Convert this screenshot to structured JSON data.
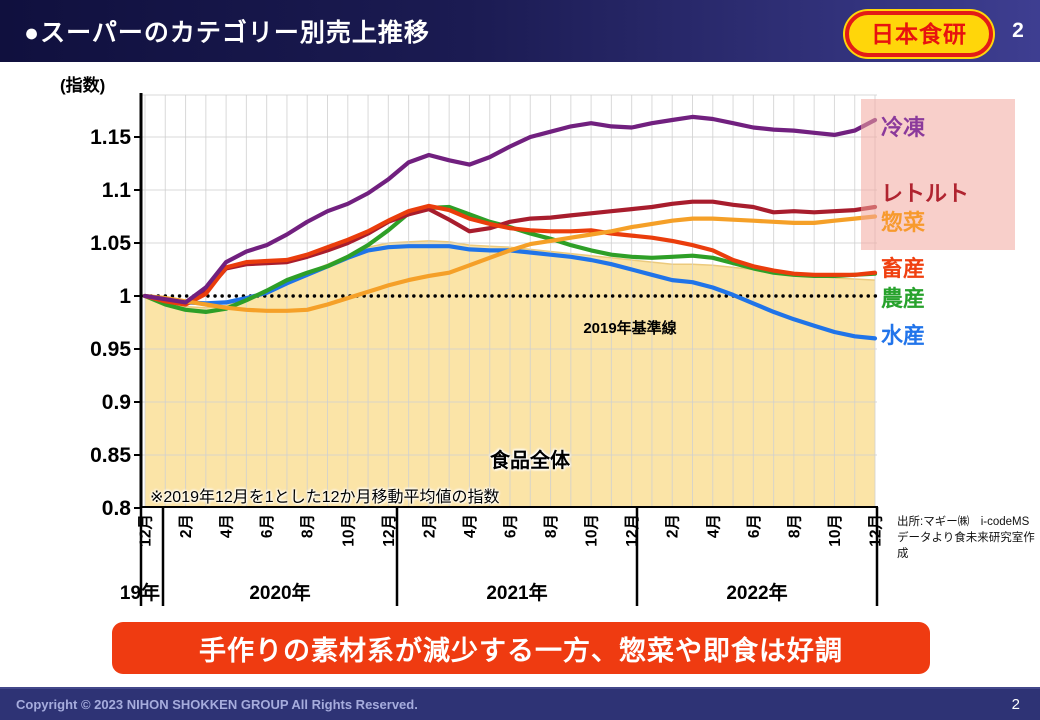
{
  "header": {
    "title": "●スーパーのカテゴリー別売上推移",
    "logo_text": "日本食研",
    "page_number": "2"
  },
  "chart_data": {
    "type": "line",
    "title": "スーパーのカテゴリー別売上推移",
    "y_axis_label": "(指数)",
    "note": "※2019年12月を1とした12か月移動平均値の指数",
    "baseline_label": "2019年基準線",
    "baseline_value": 1,
    "ylim": [
      0.8,
      1.19
    ],
    "grid": true,
    "legend_position": "right",
    "y_ticks": {
      "labels": [
        "1.15",
        "1.1",
        "1.05",
        "1",
        "0.95",
        "0.9",
        "0.85",
        "0.8"
      ],
      "values": [
        1.15,
        1.1,
        1.05,
        1,
        0.95,
        0.9,
        0.85,
        0.8
      ]
    },
    "month_ticks": {
      "months": [
        0,
        2,
        4,
        6,
        8,
        10,
        12,
        14,
        16,
        18,
        20,
        22,
        24,
        26,
        28,
        30,
        32,
        34,
        36
      ],
      "labels": [
        "12月",
        "2月",
        "4月",
        "6月",
        "8月",
        "10月",
        "12月",
        "2月",
        "4月",
        "6月",
        "8月",
        "10月",
        "12月",
        "2月",
        "4月",
        "6月",
        "8月",
        "10月",
        "12月"
      ]
    },
    "years": [
      "19年",
      "2020年",
      "2021年",
      "2022年"
    ],
    "area_series": {
      "name": "食品全体",
      "fill": "#fbe3a4",
      "edge": "#ecca7d",
      "values": [
        0.999,
        0.994,
        0.99,
        0.989,
        0.991,
        0.996,
        1.004,
        1.014,
        1.022,
        1.03,
        1.038,
        1.046,
        1.05,
        1.051,
        1.052,
        1.051,
        1.048,
        1.047,
        1.046,
        1.044,
        1.042,
        1.04,
        1.038,
        1.036,
        1.034,
        1.032,
        1.03,
        1.03,
        1.029,
        1.027,
        1.025,
        1.023,
        1.021,
        1.019,
        1.017,
        1.016,
        1.015
      ]
    },
    "series": [
      {
        "name": "冷凍",
        "color": "#71207f",
        "label_color": "#8b3a9b",
        "values": [
          1.0,
          0.997,
          0.994,
          1.008,
          1.032,
          1.042,
          1.048,
          1.058,
          1.07,
          1.08,
          1.087,
          1.097,
          1.11,
          1.126,
          1.133,
          1.128,
          1.124,
          1.131,
          1.141,
          1.15,
          1.155,
          1.16,
          1.163,
          1.16,
          1.159,
          1.163,
          1.166,
          1.169,
          1.167,
          1.163,
          1.159,
          1.157,
          1.156,
          1.154,
          1.152,
          1.156,
          1.166
        ]
      },
      {
        "name": "レトルト",
        "color": "#a81d2d",
        "label_color": "#b02430",
        "values": [
          1.0,
          0.996,
          0.993,
          1.004,
          1.026,
          1.03,
          1.031,
          1.032,
          1.037,
          1.043,
          1.05,
          1.059,
          1.07,
          1.077,
          1.082,
          1.072,
          1.061,
          1.064,
          1.07,
          1.073,
          1.074,
          1.076,
          1.078,
          1.08,
          1.082,
          1.084,
          1.087,
          1.089,
          1.089,
          1.086,
          1.084,
          1.079,
          1.08,
          1.079,
          1.08,
          1.081,
          1.084
        ]
      },
      {
        "name": "惣菜",
        "color": "#f5a028",
        "label_color": "#f79a2e",
        "values": [
          1.0,
          0.998,
          0.995,
          0.992,
          0.989,
          0.987,
          0.986,
          0.986,
          0.987,
          0.992,
          0.998,
          1.004,
          1.01,
          1.015,
          1.019,
          1.022,
          1.029,
          1.036,
          1.043,
          1.049,
          1.052,
          1.055,
          1.058,
          1.061,
          1.065,
          1.068,
          1.071,
          1.073,
          1.073,
          1.072,
          1.071,
          1.07,
          1.069,
          1.069,
          1.071,
          1.073,
          1.075
        ]
      },
      {
        "name": "畜産",
        "color": "#ea3d0c",
        "label_color": "#f04010",
        "values": [
          1.0,
          0.995,
          0.992,
          1.002,
          1.027,
          1.032,
          1.033,
          1.034,
          1.039,
          1.046,
          1.053,
          1.061,
          1.071,
          1.08,
          1.085,
          1.081,
          1.073,
          1.068,
          1.064,
          1.062,
          1.061,
          1.061,
          1.062,
          1.059,
          1.057,
          1.055,
          1.052,
          1.048,
          1.043,
          1.034,
          1.028,
          1.024,
          1.021,
          1.02,
          1.02,
          1.02,
          1.022
        ]
      },
      {
        "name": "農産",
        "color": "#2e9f27",
        "label_color": "#27a22c",
        "values": [
          1.0,
          0.992,
          0.987,
          0.985,
          0.988,
          0.996,
          1.005,
          1.015,
          1.022,
          1.028,
          1.037,
          1.048,
          1.062,
          1.078,
          1.083,
          1.084,
          1.077,
          1.07,
          1.065,
          1.059,
          1.054,
          1.048,
          1.043,
          1.039,
          1.037,
          1.036,
          1.037,
          1.038,
          1.036,
          1.031,
          1.026,
          1.022,
          1.02,
          1.019,
          1.019,
          1.02,
          1.021
        ]
      },
      {
        "name": "水産",
        "color": "#2074e8",
        "label_color": "#2174ea",
        "values": [
          1.0,
          0.996,
          0.994,
          0.993,
          0.994,
          0.998,
          1.003,
          1.012,
          1.02,
          1.028,
          1.036,
          1.043,
          1.046,
          1.047,
          1.047,
          1.047,
          1.044,
          1.043,
          1.043,
          1.041,
          1.039,
          1.037,
          1.034,
          1.03,
          1.025,
          1.02,
          1.015,
          1.013,
          1.008,
          1.001,
          0.993,
          0.985,
          0.978,
          0.972,
          0.966,
          0.962,
          0.96
        ]
      }
    ]
  },
  "source": {
    "text": "出所:マギー㈱　i-codeMSデータより食未来研究室作成"
  },
  "banner": {
    "text": "手作りの素材系が減少する一方、惣菜や即食は好調",
    "color": "#ef3b11"
  },
  "footer": {
    "copyright": "Copyright © 2023 NIHON SHOKKEN GROUP All Rights Reserved.",
    "page_number": "2"
  }
}
